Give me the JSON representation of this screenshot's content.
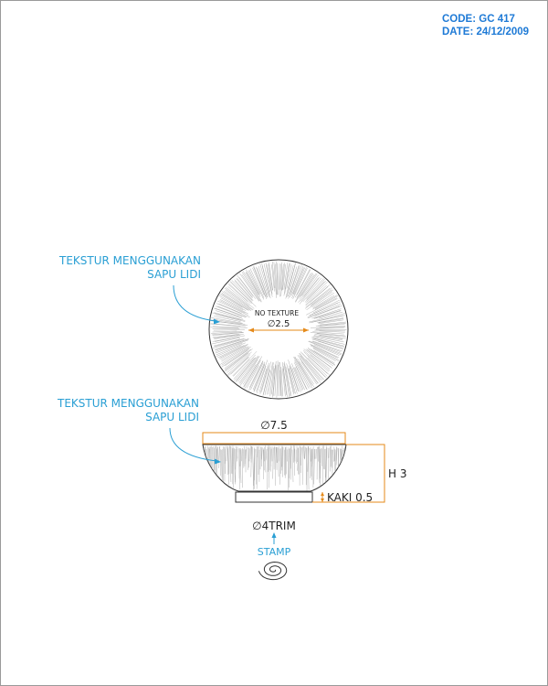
{
  "header": {
    "code": "CODE: GC 417",
    "date": "DATE: 24/12/2009"
  },
  "top_view": {
    "annotation_line1": "TEKSTUR MENGGUNAKAN",
    "annotation_line2": "SAPU LIDI",
    "center_note": "NO TEXTURE",
    "inner_diameter": "∅2.5"
  },
  "side_view": {
    "annotation_line1": "TEKSTUR MENGGUNAKAN",
    "annotation_line2": "SAPU LIDI",
    "top_diameter": "∅7.5",
    "height": "H 3",
    "foot": "KAKI 0.5",
    "foot_diameter": "∅4TRIM",
    "stamp_label": "STAMP"
  },
  "colors": {
    "annotation": "#2a9fd4",
    "dimension": "#e58a1a",
    "outline": "#333333",
    "texture": "#9a9a9a",
    "header": "#1e7ad6"
  }
}
